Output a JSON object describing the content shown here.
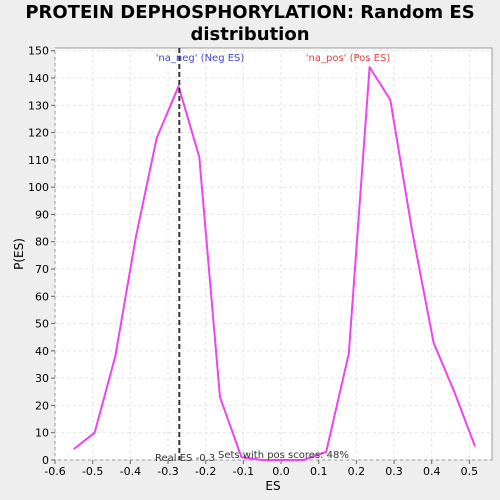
{
  "chart_data": {
    "type": "line",
    "title_line1": "PROTEIN DEPHOSPHORYLATION: Random ES",
    "title_line2": "distribution",
    "xlabel": "ES",
    "ylabel": "P(ES)",
    "xlim": [
      -0.6,
      0.56
    ],
    "ylim": [
      0,
      151
    ],
    "xticks": [
      -0.6,
      -0.5,
      -0.4,
      -0.3,
      -0.2,
      -0.1,
      0.0,
      0.1,
      0.2,
      0.3,
      0.4,
      0.5
    ],
    "xtick_labels": [
      "-0.6",
      "-0.5",
      "-0.4",
      "-0.3",
      "-0.2",
      "-0.1",
      "0.0",
      "0.1",
      "0.2",
      "0.3",
      "0.4",
      "0.5"
    ],
    "yticks": [
      0,
      10,
      20,
      30,
      40,
      50,
      60,
      70,
      80,
      90,
      100,
      110,
      120,
      130,
      140,
      150
    ],
    "ytick_labels": [
      "0",
      "10",
      "20",
      "30",
      "40",
      "50",
      "60",
      "70",
      "80",
      "90",
      "100",
      "110",
      "120",
      "130",
      "140",
      "150"
    ],
    "grid": true,
    "series": [
      {
        "color": "#ee44ee",
        "x": [
          -0.55,
          -0.495,
          -0.44,
          -0.385,
          -0.33,
          -0.272,
          -0.217,
          -0.162,
          -0.105,
          -0.05,
          0.0,
          0.06,
          0.12,
          0.18,
          0.235,
          0.29,
          0.348,
          0.405,
          0.46,
          0.515
        ],
        "y": [
          4,
          10,
          38,
          82,
          118,
          137,
          111,
          23,
          1,
          0,
          0,
          0,
          3,
          39,
          144,
          132,
          84,
          43,
          25,
          5
        ]
      }
    ],
    "real_es": -0.27,
    "annotations": {
      "neg_label": "'na_neg' (Neg ES)",
      "pos_label": "'na_pos' (Pos ES)",
      "real_es_label": "Real ES -0.3",
      "pos_scores_label": "Sets with pos scores: 48%"
    },
    "colors": {
      "neg_label": "#4444cc",
      "pos_label": "#dd4444",
      "real_es_line": "#333333"
    }
  }
}
